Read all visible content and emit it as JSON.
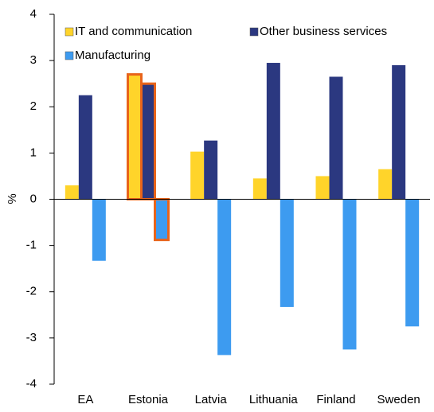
{
  "chart_data": {
    "type": "bar",
    "y_label": "%",
    "categories": [
      "EA",
      "Estonia",
      "Latvia",
      "Lithuania",
      "Finland",
      "Sweden"
    ],
    "series": [
      {
        "name": "IT and communication",
        "color": "#ffd42a",
        "values": [
          0.3,
          2.7,
          1.03,
          0.45,
          0.5,
          0.65
        ]
      },
      {
        "name": "Other business services",
        "color": "#2b3880",
        "values": [
          2.25,
          2.5,
          1.27,
          2.95,
          2.65,
          2.9
        ]
      },
      {
        "name": "Manufacturing",
        "color": "#3d9bf0",
        "values": [
          -1.33,
          -0.88,
          -3.37,
          -2.33,
          -3.25,
          -2.75
        ]
      }
    ],
    "ylim": [
      -4,
      4
    ],
    "yticks": [
      -4,
      -3,
      -2,
      -1,
      0,
      1,
      2,
      3,
      4
    ],
    "grid": false,
    "legend": "top",
    "highlight_index": 1,
    "highlight_color": "#e8641b"
  }
}
